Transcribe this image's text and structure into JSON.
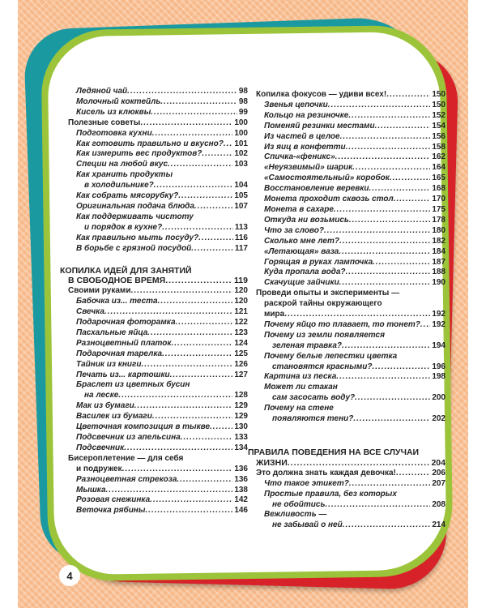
{
  "page_number": "4",
  "colors": {
    "background": "#f7b989",
    "teal": "#1a9aa0",
    "red": "#d8222a",
    "green": "#9cc43a"
  },
  "left_column": [
    {
      "level": 2,
      "lines": [
        "Ледяной чай"
      ],
      "page": "98"
    },
    {
      "level": 2,
      "lines": [
        "Молочный коктейль"
      ],
      "page": "98"
    },
    {
      "level": 2,
      "lines": [
        "Кисель из клюквы"
      ],
      "page": "99"
    },
    {
      "level": 1,
      "lines": [
        "Полезные советы"
      ],
      "page": "100"
    },
    {
      "level": 2,
      "lines": [
        "Подготовка кухни"
      ],
      "page": "100"
    },
    {
      "level": 2,
      "lines": [
        "Как готовить правильно и вкусно?"
      ],
      "page": "101"
    },
    {
      "level": 2,
      "lines": [
        "Как измерить вес продуктов?"
      ],
      "page": "102"
    },
    {
      "level": 2,
      "lines": [
        "Специи на любой вкус"
      ],
      "page": "103"
    },
    {
      "level": 2,
      "lines": [
        "Как хранить продукты",
        "в холодильнике?"
      ],
      "page": "104"
    },
    {
      "level": 2,
      "lines": [
        "Как собрать мясорубку?"
      ],
      "page": "105"
    },
    {
      "level": 2,
      "lines": [
        "Оригинальная подача блюда"
      ],
      "page": "107"
    },
    {
      "level": 2,
      "lines": [
        "Как поддерживать чистоту",
        "и порядок в кухне?"
      ],
      "page": "113"
    },
    {
      "level": 2,
      "lines": [
        "Как правильно мыть посуду?"
      ],
      "page": "116"
    },
    {
      "level": 2,
      "lines": [
        "В борьбе с грязной посудой"
      ],
      "page": "117"
    },
    {
      "gap": true
    },
    {
      "level": 0,
      "lines": [
        "КОПИЛКА ИДЕЙ ДЛЯ ЗАНЯТИЙ",
        "В СВОБОДНОЕ ВРЕМЯ"
      ],
      "page": "119"
    },
    {
      "level": 1,
      "lines": [
        "Своими руками"
      ],
      "page": "120"
    },
    {
      "level": 2,
      "lines": [
        "Бабочка из... теста"
      ],
      "page": "120"
    },
    {
      "level": 2,
      "lines": [
        "Свечка"
      ],
      "page": "121"
    },
    {
      "level": 2,
      "lines": [
        "Подарочная фоторамка"
      ],
      "page": "122"
    },
    {
      "level": 2,
      "lines": [
        "Пасхальные яйца"
      ],
      "page": "123"
    },
    {
      "level": 2,
      "lines": [
        "Разноцветный платок"
      ],
      "page": "124"
    },
    {
      "level": 2,
      "lines": [
        "Подарочная тарелка"
      ],
      "page": "125"
    },
    {
      "level": 2,
      "lines": [
        "Тайник из книги"
      ],
      "page": "126"
    },
    {
      "level": 2,
      "lines": [
        "Печать из... картошки"
      ],
      "page": "127"
    },
    {
      "level": 2,
      "lines": [
        "Браслет из цветных бусин",
        "на леске"
      ],
      "page": "128"
    },
    {
      "level": 2,
      "lines": [
        "Мак из бумаги"
      ],
      "page": "129"
    },
    {
      "level": 2,
      "lines": [
        "Василек из бумаги"
      ],
      "page": "129"
    },
    {
      "level": 2,
      "lines": [
        "Цветочная композиция в тыкве"
      ],
      "page": "130"
    },
    {
      "level": 2,
      "lines": [
        "Подсвечник из апельсина"
      ],
      "page": "133"
    },
    {
      "level": 2,
      "lines": [
        "Подсвечник"
      ],
      "page": "134"
    },
    {
      "level": 1,
      "lines": [
        "Бисероплетение — для себя",
        "и подружек"
      ],
      "page": "136"
    },
    {
      "level": 2,
      "lines": [
        "Разноцветная стрекоза"
      ],
      "page": "136"
    },
    {
      "level": 2,
      "lines": [
        "Мышка"
      ],
      "page": "138"
    },
    {
      "level": 2,
      "lines": [
        "Розовая снежинка"
      ],
      "page": "142"
    },
    {
      "level": 2,
      "lines": [
        "Веточка рябины"
      ],
      "page": "146"
    }
  ],
  "right_column": [
    {
      "level": 1,
      "lines": [
        "Копилка фокусов — удиви всех!"
      ],
      "page": "150"
    },
    {
      "level": 2,
      "lines": [
        "Звенья цепочки"
      ],
      "page": "150"
    },
    {
      "level": 2,
      "lines": [
        "Кольцо на резиночке"
      ],
      "page": "152"
    },
    {
      "level": 2,
      "lines": [
        "Поменяй резинки местами"
      ],
      "page": "154"
    },
    {
      "level": 2,
      "lines": [
        "Из частей в целое"
      ],
      "page": "156"
    },
    {
      "level": 2,
      "lines": [
        "Из яиц в конфетти"
      ],
      "page": "158"
    },
    {
      "level": 2,
      "lines": [
        "Спичка-«феникс»"
      ],
      "page": "162"
    },
    {
      "level": 2,
      "lines": [
        "«Неуязвимый» шарик"
      ],
      "page": "164"
    },
    {
      "level": 2,
      "lines": [
        "«Самостоятельный» коробок"
      ],
      "page": "165"
    },
    {
      "level": 2,
      "lines": [
        "Восстановление веревки"
      ],
      "page": "168"
    },
    {
      "level": 2,
      "lines": [
        "Монета проходит сквозь стол"
      ],
      "page": "170"
    },
    {
      "level": 2,
      "lines": [
        "Монета в сахаре"
      ],
      "page": "175"
    },
    {
      "level": 2,
      "lines": [
        "Откуда ни возьмись"
      ],
      "page": "178"
    },
    {
      "level": 2,
      "lines": [
        "Что за слово?"
      ],
      "page": "180"
    },
    {
      "level": 2,
      "lines": [
        "Сколько мне лет?"
      ],
      "page": "182"
    },
    {
      "level": 2,
      "lines": [
        "«Летающая» ваза"
      ],
      "page": "184"
    },
    {
      "level": 2,
      "lines": [
        "Горящая в руках лампочка"
      ],
      "page": "187"
    },
    {
      "level": 2,
      "lines": [
        "Куда пропала вода?"
      ],
      "page": "188"
    },
    {
      "level": 2,
      "lines": [
        "Скачущие зайчики"
      ],
      "page": "190"
    },
    {
      "level": 1,
      "lines": [
        "Проведи опыты и эксперименты —",
        "раскрой тайны окружающего",
        "мира"
      ],
      "page": "192"
    },
    {
      "level": 2,
      "lines": [
        "Почему яйцо то плавает, то тонет?"
      ],
      "page": "192"
    },
    {
      "level": 2,
      "lines": [
        "Почему из земли появляется",
        "зеленая травка?"
      ],
      "page": "194"
    },
    {
      "level": 2,
      "lines": [
        "Почему белые лепестки цветка",
        "становятся красными?"
      ],
      "page": "196"
    },
    {
      "level": 2,
      "lines": [
        "Картина из песка"
      ],
      "page": "198"
    },
    {
      "level": 2,
      "lines": [
        "Может ли стакан",
        "сам засосать воду?"
      ],
      "page": "200"
    },
    {
      "level": 2,
      "lines": [
        "Почему на стене",
        "появляются тени?"
      ],
      "page": "202"
    },
    {
      "gap": true
    },
    {
      "gap": true
    },
    {
      "level": 0,
      "lines": [
        "ПРАВИЛА ПОВЕДЕНИЯ НА ВСЕ СЛУЧАИ",
        "ЖИЗНИ"
      ],
      "page": "204"
    },
    {
      "level": 1,
      "lines": [
        "Это должна знать каждая девочка!"
      ],
      "page": "206"
    },
    {
      "level": 2,
      "lines": [
        "Что такое этикет?"
      ],
      "page": "207"
    },
    {
      "level": 2,
      "lines": [
        "Простые правила, без которых",
        "не обойтись"
      ],
      "page": "208"
    },
    {
      "level": 2,
      "lines": [
        "Вежливость —",
        "не забывай о ней"
      ],
      "page": "214"
    }
  ]
}
